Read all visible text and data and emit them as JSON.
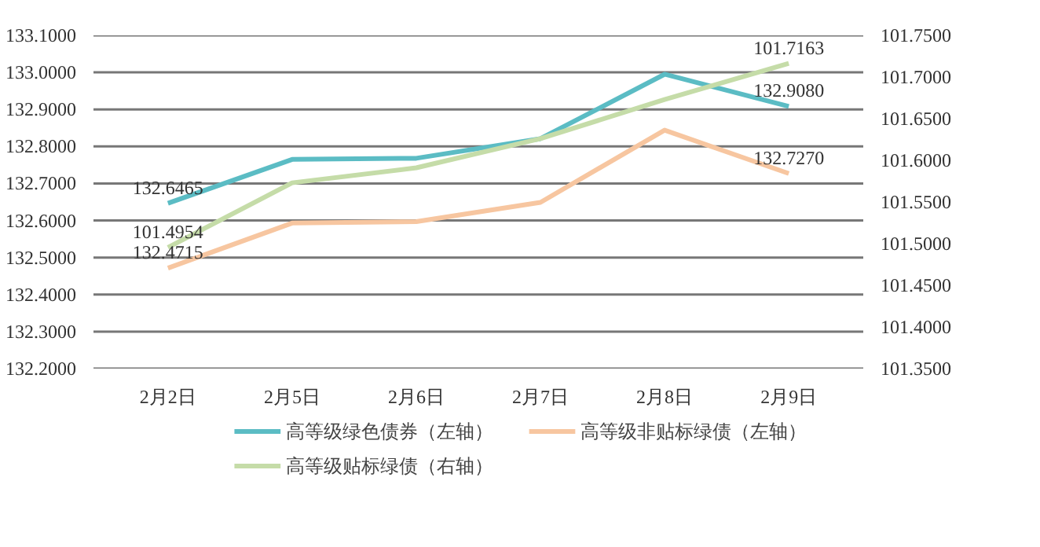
{
  "chart_data": {
    "type": "line",
    "categories": [
      "2月2日",
      "2月5日",
      "2月6日",
      "2月7日",
      "2月8日",
      "2月9日"
    ],
    "series": [
      {
        "name": "高等级绿色债券（左轴）",
        "color": "#5bbcc4",
        "values": [
          132.6465,
          132.765,
          132.768,
          132.821,
          132.995,
          132.908
        ],
        "value_labels": [
          "132.6465",
          null,
          null,
          null,
          null,
          "132.9080"
        ]
      },
      {
        "name": "高等级非贴标绿债（左轴）",
        "color": "#f7c6a0",
        "values": [
          132.4715,
          132.593,
          132.597,
          132.649,
          132.844,
          132.727
        ],
        "value_labels": [
          "132.4715",
          null,
          null,
          null,
          null,
          "132.7270"
        ]
      },
      {
        "name": "高等级贴标绿债（右轴）",
        "color": "#c5dca8",
        "axis": "y2",
        "values": [
          101.4954,
          101.573,
          101.591,
          101.626,
          101.673,
          101.7163
        ],
        "value_labels": [
          "101.4954",
          null,
          null,
          null,
          null,
          "101.7163"
        ]
      }
    ],
    "ylim": [
      132.2,
      133.1
    ],
    "yticks": [
      {
        "value": 132.2,
        "label": "132.2000"
      },
      {
        "value": 132.3,
        "label": "132.3000"
      },
      {
        "value": 132.4,
        "label": "132.4000"
      },
      {
        "value": 132.5,
        "label": "132.5000"
      },
      {
        "value": 132.6,
        "label": "132.6000"
      },
      {
        "value": 132.7,
        "label": "132.7000"
      },
      {
        "value": 132.8,
        "label": "132.8000"
      },
      {
        "value": 132.9,
        "label": "132.9000"
      },
      {
        "value": 133.0,
        "label": "133.0000"
      },
      {
        "value": 133.1,
        "label": "133.1000"
      }
    ],
    "y2lim": [
      101.35,
      101.75
    ],
    "y2ticks": [
      {
        "value": 101.35,
        "label": "101.3500"
      },
      {
        "value": 101.4,
        "label": "101.4000"
      },
      {
        "value": 101.45,
        "label": "101.4500"
      },
      {
        "value": 101.5,
        "label": "101.5000"
      },
      {
        "value": 101.55,
        "label": "101.5500"
      },
      {
        "value": 101.6,
        "label": "101.6000"
      },
      {
        "value": 101.65,
        "label": "101.6500"
      },
      {
        "value": 101.7,
        "label": "101.7000"
      },
      {
        "value": 101.75,
        "label": "101.7500"
      }
    ],
    "grid": "y",
    "legend": "bottom",
    "marker": "none",
    "line_style": "solid"
  }
}
